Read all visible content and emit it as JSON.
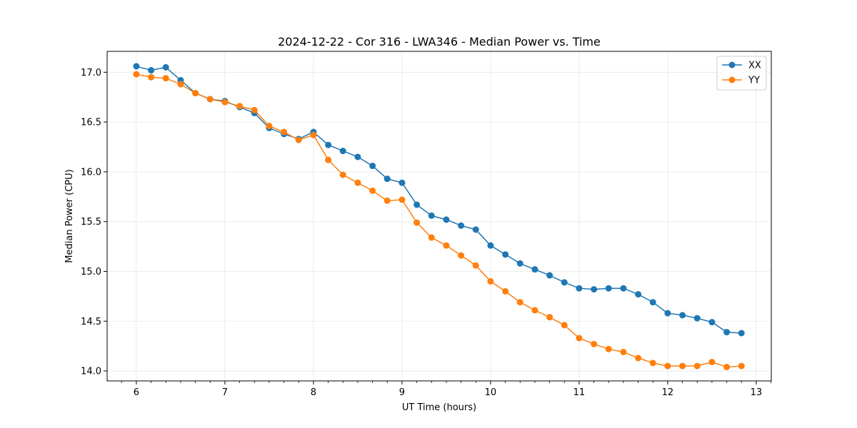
{
  "chart_data": {
    "type": "line",
    "title": "2024-12-22 - Cor 316 - LWA346 - Median Power vs. Time",
    "xlabel": "UT Time (hours)",
    "ylabel": "Median Power (CPU)",
    "xlim": [
      5.67,
      13.17
    ],
    "ylim": [
      13.9,
      17.21
    ],
    "xticks": [
      6,
      7,
      8,
      9,
      10,
      11,
      12,
      13
    ],
    "xtick_labels": [
      "6",
      "7",
      "8",
      "9",
      "10",
      "11",
      "12",
      "13"
    ],
    "yticks": [
      14.0,
      14.5,
      15.0,
      15.5,
      16.0,
      16.5,
      17.0
    ],
    "ytick_labels": [
      "14.0",
      "14.5",
      "15.0",
      "15.5",
      "16.0",
      "16.5",
      "17.0"
    ],
    "grid": true,
    "legend_position": "top-right",
    "x": [
      6.0,
      6.167,
      6.333,
      6.5,
      6.667,
      6.833,
      7.0,
      7.167,
      7.333,
      7.5,
      7.667,
      7.833,
      8.0,
      8.167,
      8.333,
      8.5,
      8.667,
      8.833,
      9.0,
      9.167,
      9.333,
      9.5,
      9.667,
      9.833,
      10.0,
      10.167,
      10.333,
      10.5,
      10.667,
      10.833,
      11.0,
      11.167,
      11.333,
      11.5,
      11.667,
      11.833,
      12.0,
      12.167,
      12.333,
      12.5,
      12.667,
      12.833
    ],
    "series": [
      {
        "name": "XX",
        "color": "#1f77b4",
        "values": [
          17.06,
          17.02,
          17.05,
          16.92,
          16.79,
          16.73,
          16.71,
          16.65,
          16.59,
          16.44,
          16.38,
          16.33,
          16.4,
          16.27,
          16.21,
          16.15,
          16.06,
          15.93,
          15.89,
          15.67,
          15.56,
          15.52,
          15.46,
          15.42,
          15.26,
          15.17,
          15.08,
          15.02,
          14.96,
          14.89,
          14.83,
          14.82,
          14.83,
          14.83,
          14.77,
          14.69,
          14.58,
          14.56,
          14.53,
          14.49,
          14.39,
          14.38
        ]
      },
      {
        "name": "YY",
        "color": "#ff7f0e",
        "values": [
          16.98,
          16.95,
          16.94,
          16.88,
          16.79,
          16.73,
          16.7,
          16.66,
          16.62,
          16.46,
          16.4,
          16.32,
          16.37,
          16.12,
          15.97,
          15.89,
          15.81,
          15.71,
          15.72,
          15.49,
          15.34,
          15.26,
          15.16,
          15.06,
          14.9,
          14.8,
          14.69,
          14.61,
          14.54,
          14.46,
          14.33,
          14.27,
          14.22,
          14.19,
          14.13,
          14.08,
          14.05,
          14.05,
          14.05,
          14.09,
          14.04,
          14.05
        ]
      }
    ]
  }
}
